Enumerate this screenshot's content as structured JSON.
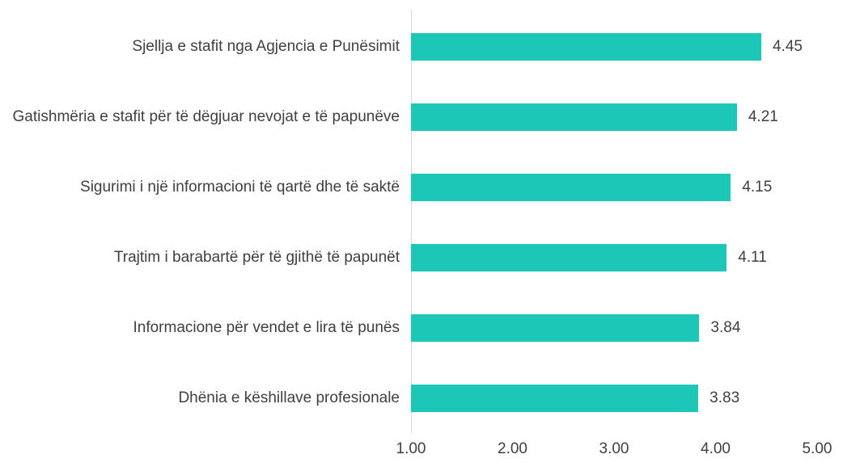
{
  "chart_data": {
    "type": "bar",
    "orientation": "horizontal",
    "categories": [
      "Sjellja e stafit nga Agjencia e Punësimit",
      "Gatishmëria e stafit për të dëgjuar nevojat e të papunëve",
      "Sigurimi i një informacioni të qartë dhe të saktë",
      "Trajtim i barabartë për të gjithë të papunët",
      "Informacione për vendet e lira të punës",
      "Dhënia e këshillave profesionale"
    ],
    "values": [
      4.45,
      4.21,
      4.15,
      4.11,
      3.84,
      3.83
    ],
    "color": "#1cc7b7",
    "xlim": [
      1,
      5
    ],
    "xticks": [
      {
        "value": 1,
        "label": "1.00"
      },
      {
        "value": 2,
        "label": "2.00"
      },
      {
        "value": 3,
        "label": "3.00"
      },
      {
        "value": 4,
        "label": "4.00"
      },
      {
        "value": 5,
        "label": "5.00"
      }
    ],
    "grid": false
  }
}
